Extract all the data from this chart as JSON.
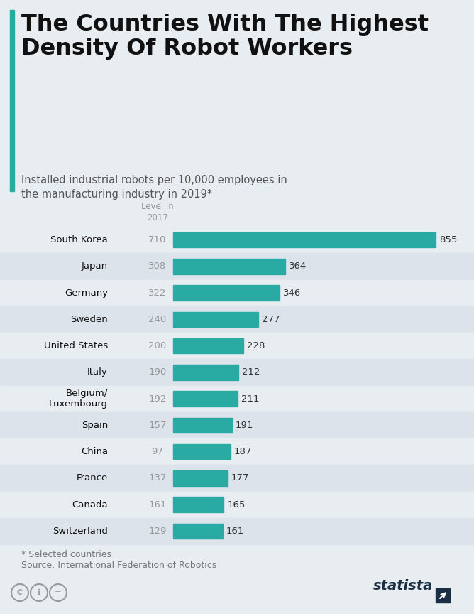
{
  "title_line1": "The Countries With The Highest",
  "title_line2": "Density Of Robot Workers",
  "subtitle": "Installed industrial robots per 10,000 employees in\nthe manufacturing industry in 2019*",
  "countries": [
    "South Korea",
    "Japan",
    "Germany",
    "Sweden",
    "United States",
    "Italy",
    "Belgium/\nLuxembourg",
    "Spain",
    "China",
    "France",
    "Canada",
    "Switzerland"
  ],
  "values_2019": [
    855,
    364,
    346,
    277,
    228,
    212,
    211,
    191,
    187,
    177,
    165,
    161
  ],
  "values_2017": [
    710,
    308,
    322,
    240,
    200,
    190,
    192,
    157,
    97,
    137,
    161,
    129
  ],
  "bar_color": "#29aba4",
  "bg_color": "#e8edf2",
  "row_color_odd": "#dde3eb",
  "title_color": "#111111",
  "subtitle_color": "#555555",
  "value_2017_color": "#999999",
  "bar_value_color": "#333333",
  "footer_color": "#777777",
  "statista_color": "#1a2e44",
  "col_header": "Level in\n2017",
  "footnote_line1": "* Selected countries",
  "footnote_line2": "Source: International Federation of Robotics"
}
